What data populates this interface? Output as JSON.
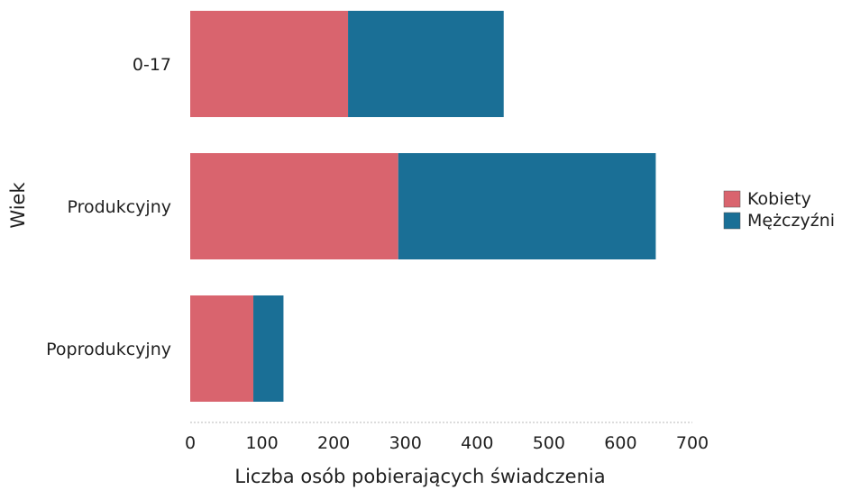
{
  "chart_data": {
    "type": "bar",
    "orientation": "horizontal",
    "stacked": true,
    "title": "",
    "xlabel": "Liczba osób pobierających świadczenia",
    "ylabel": "Wiek",
    "categories": [
      "0-17",
      "Produkcyjny",
      "Poprodukcyjny"
    ],
    "series": [
      {
        "name": "Kobiety",
        "color": "#d9646e",
        "values": [
          220,
          290,
          88
        ]
      },
      {
        "name": "Mężczyźni",
        "color": "#1a6f96",
        "values": [
          217,
          359,
          42
        ]
      }
    ],
    "xlim": [
      0,
      700
    ],
    "xticks": [
      "0",
      "100",
      "200",
      "300",
      "400",
      "500",
      "600",
      "700"
    ],
    "grid": false,
    "legend_position": "right"
  }
}
